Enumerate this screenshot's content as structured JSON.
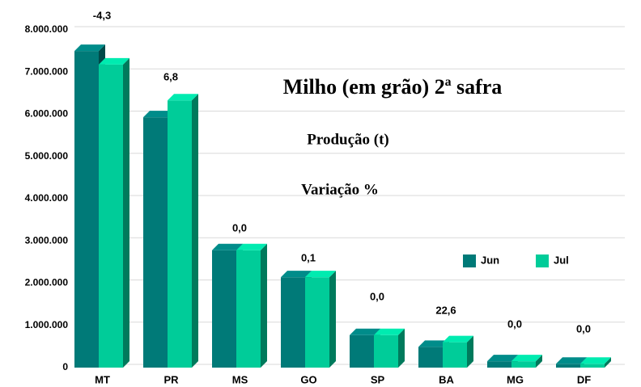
{
  "chart_data": {
    "type": "bar3d",
    "title": "Milho (em grão) 2ª safra",
    "subtitle": "Produção (t)",
    "annotation": "Variação %",
    "categories": [
      "MT",
      "PR",
      "MS",
      "GO",
      "SP",
      "BA",
      "MG",
      "DF"
    ],
    "series": [
      {
        "name": "Jun",
        "color": "#007a78",
        "values": [
          7500000,
          5930000,
          2780000,
          2140000,
          770000,
          490000,
          150000,
          90000
        ]
      },
      {
        "name": "Jul",
        "color": "#00cc99",
        "values": [
          7180000,
          6330000,
          2780000,
          2140000,
          770000,
          600000,
          150000,
          90000
        ]
      }
    ],
    "variation_labels": [
      "-4,3",
      "6,8",
      "0,0",
      "0,1",
      "0,0",
      "22,6",
      "0,0",
      "0,0"
    ],
    "ylim": [
      0,
      8000000
    ],
    "yticks": [
      0,
      {
        "value": 1000000,
        "label": "1.000.000"
      },
      {
        "value": 2000000,
        "label": "2.000.000"
      },
      {
        "value": 3000000,
        "label": "3.000.000"
      },
      {
        "value": 4000000,
        "label": "4.000.000"
      },
      {
        "value": 5000000,
        "label": "5.000.000"
      },
      {
        "value": 6000000,
        "label": "6.000.000"
      },
      {
        "value": 7000000,
        "label": "7.000.000"
      },
      {
        "value": 8000000,
        "label": "8.000.000"
      }
    ],
    "grid": true,
    "legend": "right"
  }
}
